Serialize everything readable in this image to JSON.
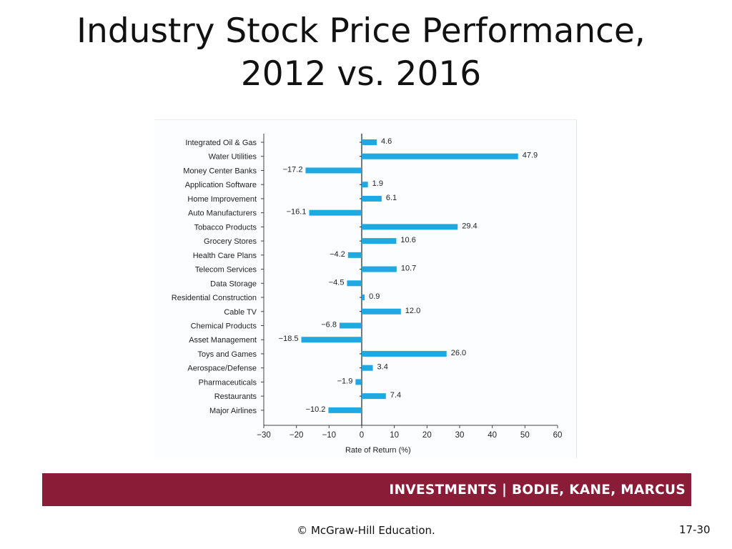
{
  "slide": {
    "title_line1": "Industry Stock Price Performance,",
    "title_line2": "2012 vs. 2016"
  },
  "footer": {
    "banner_text": "INVESTMENTS | BODIE, KANE, MARCUS",
    "copyright": "© McGraw-Hill Education.",
    "page_number": "17-30"
  },
  "colors": {
    "bar": "#20a8e0",
    "banner": "#8a1c38"
  },
  "chart_data": {
    "type": "bar",
    "orientation": "horizontal",
    "categories": [
      "Integrated Oil & Gas",
      "Water Utilities",
      "Money Center Banks",
      "Application Software",
      "Home Improvement",
      "Auto Manufacturers",
      "Tobacco Products",
      "Grocery Stores",
      "Health Care Plans",
      "Telecom Services",
      "Data Storage",
      "Residential Construction",
      "Cable TV",
      "Chemical Products",
      "Asset Management",
      "Toys and Games",
      "Aerospace/Defense",
      "Pharmaceuticals",
      "Restaurants",
      "Major Airlines"
    ],
    "values": [
      4.6,
      47.9,
      -17.2,
      1.9,
      6.1,
      -16.1,
      29.4,
      10.6,
      -4.2,
      10.7,
      -4.5,
      0.9,
      12.0,
      -6.8,
      -18.5,
      26.0,
      3.4,
      -1.9,
      7.4,
      -10.2
    ],
    "value_labels": [
      "4.6",
      "47.9",
      "−17.2",
      "1.9",
      "6.1",
      "−16.1",
      "29.4",
      "10.6",
      "−4.2",
      "10.7",
      "−4.5",
      "0.9",
      "12.0",
      "−6.8",
      "−18.5",
      "26.0",
      "3.4",
      "−1.9",
      "7.4",
      "−10.2"
    ],
    "xticks": [
      -30,
      -20,
      -10,
      0,
      10,
      20,
      30,
      40,
      50,
      60
    ],
    "xtick_labels": [
      "−30",
      "−20",
      "−10",
      "0",
      "10",
      "20",
      "30",
      "40",
      "50",
      "60"
    ],
    "xlim": [
      -30,
      60
    ],
    "xlabel": "Rate of Return (%)",
    "ylabel": "",
    "grid": false,
    "legend": "none"
  }
}
